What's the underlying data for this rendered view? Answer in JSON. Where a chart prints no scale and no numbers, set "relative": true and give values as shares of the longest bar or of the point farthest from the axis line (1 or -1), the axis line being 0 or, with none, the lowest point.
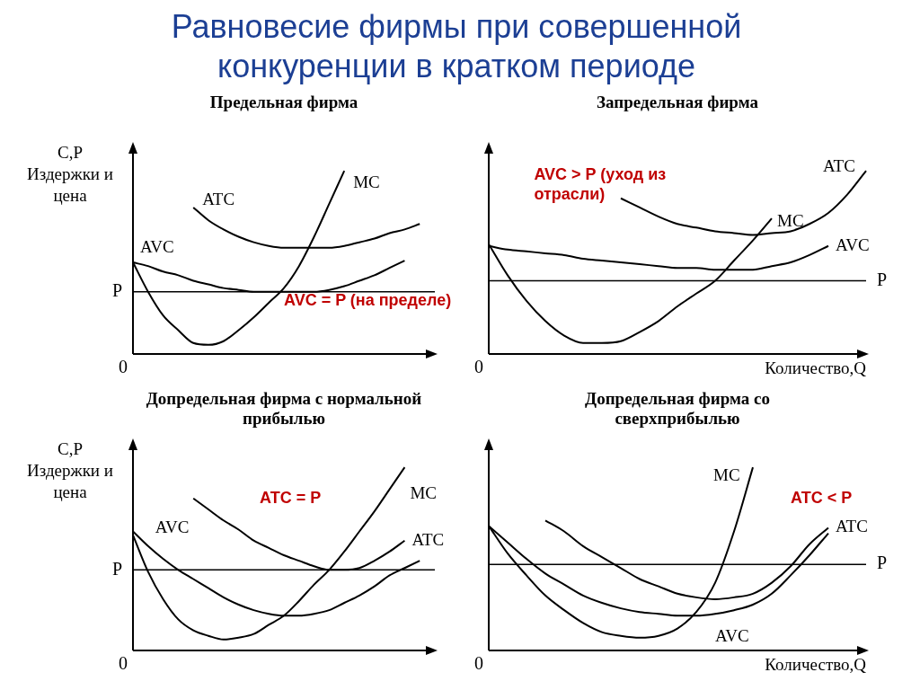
{
  "chart_data": [
    {
      "type": "other",
      "title": "Равновесие фирмы при совершенной конкуренции в кратком периоде"
    },
    {
      "type": "line",
      "title": "Предельная фирма",
      "ylabel": "C,P Издержки и цена",
      "relative": true,
      "marker": "none",
      "categories": [
        null,
        null,
        null,
        null,
        null,
        null,
        null,
        null,
        null,
        null,
        null,
        null,
        null,
        null,
        null,
        null,
        null,
        null,
        null,
        null,
        null
      ],
      "series": [
        {
          "name": "MC",
          "color": "#000000",
          "values": [
            0.5,
            0.34,
            0.21,
            0.13,
            0.06,
            0.05,
            0.07,
            0.13,
            0.2,
            0.28,
            0.36,
            0.48,
            0.64,
            0.82,
            1,
            null,
            null,
            null,
            null,
            null,
            null
          ]
        },
        {
          "name": "ATC",
          "color": "#000000",
          "values": [
            null,
            null,
            null,
            null,
            0.8,
            0.73,
            0.68,
            0.64,
            0.61,
            0.59,
            0.58,
            0.58,
            0.58,
            0.58,
            0.59,
            0.61,
            0.63,
            0.66,
            0.68,
            0.71,
            null
          ]
        },
        {
          "name": "AVC",
          "color": "#000000",
          "values": [
            0.5,
            0.48,
            0.45,
            0.43,
            0.4,
            0.38,
            0.36,
            0.35,
            0.34,
            0.34,
            0.34,
            0.34,
            0.34,
            0.35,
            0.37,
            0.4,
            0.43,
            0.47,
            0.51,
            null,
            null
          ]
        }
      ],
      "ref_lines": [
        {
          "axis": "y",
          "value": 0.34,
          "label": "P",
          "color": "#000000"
        }
      ],
      "annotations": [
        "0",
        "AVC = P (на пределе)"
      ]
    },
    {
      "type": "line",
      "title": "Запредельная фирма",
      "xlabel": "Количество,Q",
      "relative": true,
      "marker": "none",
      "categories": [
        null,
        null,
        null,
        null,
        null,
        null,
        null,
        null,
        null,
        null,
        null,
        null,
        null,
        null,
        null,
        null,
        null,
        null,
        null,
        null,
        null
      ],
      "series": [
        {
          "name": "MC",
          "color": "#000000",
          "values": [
            0.6,
            0.43,
            0.29,
            0.18,
            0.1,
            0.06,
            0.06,
            0.07,
            0.12,
            0.18,
            0.26,
            0.33,
            0.4,
            0.51,
            0.62,
            0.74,
            null,
            null,
            null,
            null,
            null
          ]
        },
        {
          "name": "ATC",
          "color": "#000000",
          "values": [
            null,
            null,
            null,
            null,
            null,
            null,
            null,
            0.85,
            0.8,
            0.75,
            0.71,
            0.69,
            0.67,
            0.66,
            0.65,
            0.66,
            0.67,
            0.71,
            0.77,
            0.87,
            1
          ]
        },
        {
          "name": "AVC",
          "color": "#000000",
          "values": [
            0.59,
            0.57,
            0.56,
            0.55,
            0.54,
            0.52,
            0.51,
            0.5,
            0.49,
            0.48,
            0.47,
            0.47,
            0.46,
            0.46,
            0.46,
            0.48,
            0.5,
            0.54,
            0.59,
            null,
            null
          ]
        }
      ],
      "ref_lines": [
        {
          "axis": "y",
          "value": 0.4,
          "label": "P",
          "color": "#000000"
        }
      ],
      "annotations": [
        "0",
        "AVC > P (уход из отрасли)"
      ]
    },
    {
      "type": "line",
      "title": "Допредельная фирма с нормальной прибылью",
      "ylabel": "C,P Издержки и цена",
      "relative": true,
      "marker": "none",
      "categories": [
        null,
        null,
        null,
        null,
        null,
        null,
        null,
        null,
        null,
        null,
        null,
        null,
        null,
        null,
        null,
        null,
        null,
        null,
        null,
        null,
        null
      ],
      "series": [
        {
          "name": "MC",
          "color": "#000000",
          "values": [
            0.63,
            0.43,
            0.28,
            0.17,
            0.11,
            0.08,
            0.06,
            0.07,
            0.09,
            0.14,
            0.19,
            0.27,
            0.36,
            0.44,
            0.54,
            0.65,
            0.76,
            0.88,
            1,
            null,
            null
          ]
        },
        {
          "name": "ATC",
          "color": "#000000",
          "values": [
            null,
            null,
            null,
            null,
            0.83,
            0.77,
            0.71,
            0.66,
            0.6,
            0.56,
            0.52,
            0.49,
            0.46,
            0.44,
            0.44,
            0.45,
            0.49,
            0.54,
            0.6,
            null,
            null
          ]
        },
        {
          "name": "AVC",
          "color": "#000000",
          "values": [
            0.65,
            0.57,
            0.5,
            0.44,
            0.39,
            0.34,
            0.29,
            0.25,
            0.22,
            0.2,
            0.19,
            0.19,
            0.2,
            0.22,
            0.26,
            0.3,
            0.35,
            0.41,
            0.45,
            0.49,
            null
          ]
        }
      ],
      "ref_lines": [
        {
          "axis": "y",
          "value": 0.44,
          "label": "P",
          "color": "#000000"
        }
      ],
      "annotations": [
        "0",
        "ATC = P"
      ]
    },
    {
      "type": "line",
      "title": "Допредельная фирма со сверхприбылью",
      "xlabel": "Количество,Q",
      "relative": true,
      "marker": "none",
      "categories": [
        null,
        null,
        null,
        null,
        null,
        null,
        null,
        null,
        null,
        null,
        null,
        null,
        null,
        null,
        null,
        null,
        null,
        null,
        null,
        null,
        null
      ],
      "series": [
        {
          "name": "MC",
          "color": "#000000",
          "values": [
            0.68,
            0.53,
            0.41,
            0.3,
            0.22,
            0.15,
            0.1,
            0.08,
            0.07,
            0.08,
            0.12,
            0.21,
            0.37,
            0.65,
            1,
            null,
            null,
            null,
            null,
            null,
            null
          ]
        },
        {
          "name": "ATC",
          "color": "#000000",
          "values": [
            null,
            null,
            null,
            0.71,
            0.65,
            0.57,
            0.51,
            0.45,
            0.39,
            0.35,
            0.31,
            0.29,
            0.28,
            0.29,
            0.31,
            0.37,
            0.46,
            0.58,
            0.67,
            null,
            null
          ]
        },
        {
          "name": "AVC",
          "color": "#000000",
          "values": [
            0.68,
            0.59,
            0.5,
            0.42,
            0.36,
            0.3,
            0.26,
            0.23,
            0.21,
            0.2,
            0.19,
            0.19,
            0.2,
            0.22,
            0.25,
            0.31,
            0.41,
            0.52,
            0.64,
            null,
            null
          ]
        }
      ],
      "ref_lines": [
        {
          "axis": "y",
          "value": 0.47,
          "label": "P",
          "color": "#000000"
        }
      ],
      "annotations": [
        "0",
        "ATC < P"
      ]
    }
  ]
}
